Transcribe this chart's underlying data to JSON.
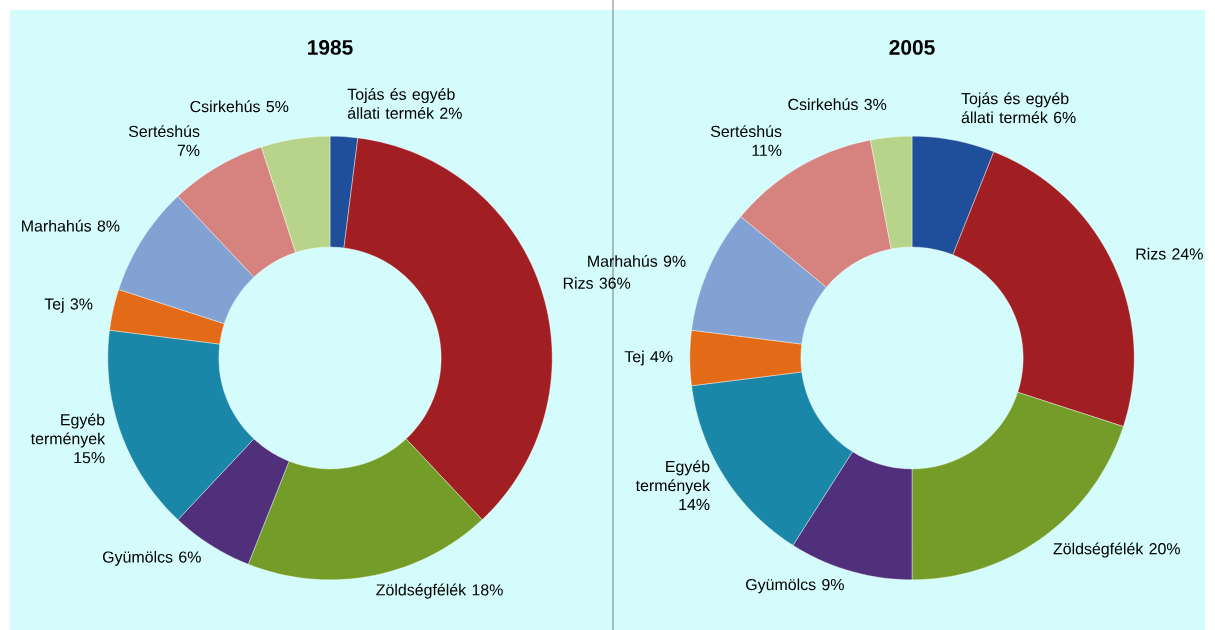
{
  "chart_data": [
    {
      "type": "donut",
      "title": "1985",
      "categories": [
        "Tojás és egyéb állati termék",
        "Rizs",
        "Zöldségfélék",
        "Gyümölcs",
        "Egyéb termények",
        "Tej",
        "Marhahús",
        "Sertéshús",
        "Csirkehús"
      ],
      "values": [
        2,
        36,
        18,
        6,
        15,
        3,
        8,
        7,
        5
      ],
      "value_labels": [
        "2%",
        "36%",
        "18%",
        "6%",
        "15%",
        "3%",
        "8%",
        "7%",
        "5%"
      ],
      "colors": [
        "#1f4e9a",
        "#a11e22",
        "#739d28",
        "#50307a",
        "#1b87a8",
        "#e36a17",
        "#82a2d4",
        "#d68380",
        "#b8d48a"
      ]
    },
    {
      "type": "donut",
      "title": "2005",
      "categories": [
        "Tojás és egyéb állati termék",
        "Rizs",
        "Zöldségfélék",
        "Gyümölcs",
        "Egyéb termények",
        "Tej",
        "Marhahús",
        "Sertéshús",
        "Csirkehús"
      ],
      "values": [
        6,
        24,
        20,
        9,
        14,
        4,
        9,
        11,
        3
      ],
      "value_labels": [
        "6%",
        "24%",
        "20%",
        "9%",
        "14%",
        "4%",
        "9%",
        "11%",
        "3%"
      ],
      "colors": [
        "#1f4e9a",
        "#a11e22",
        "#739d28",
        "#50307a",
        "#1b87a8",
        "#e36a17",
        "#82a2d4",
        "#d68380",
        "#b8d48a"
      ]
    }
  ]
}
